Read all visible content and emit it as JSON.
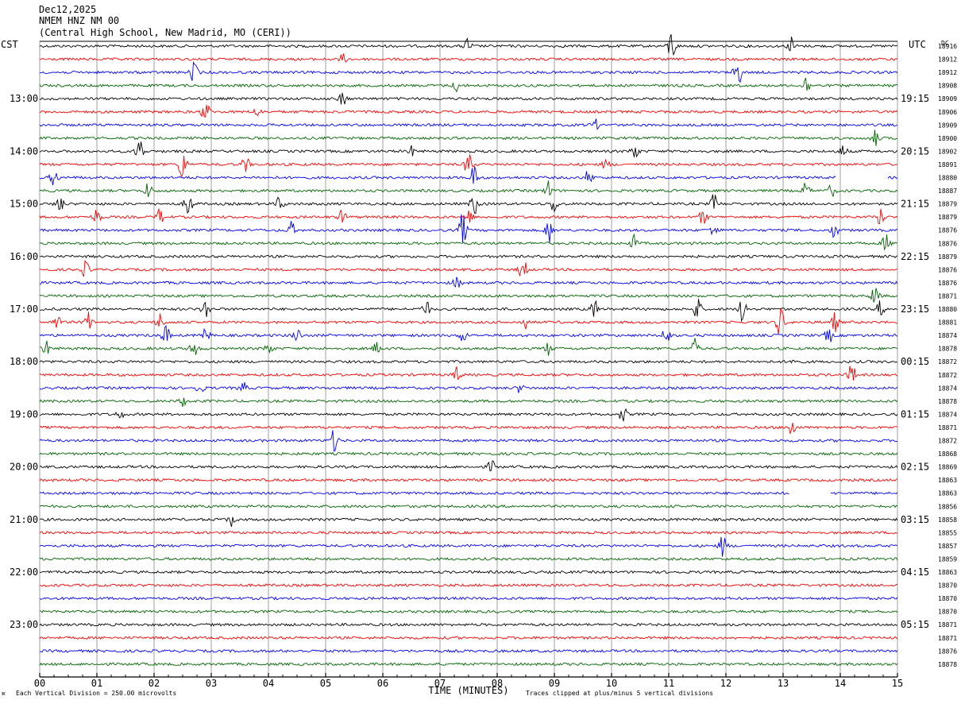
{
  "header": {
    "date": "Dec12,2025",
    "station": "NMEM HNZ NM 00",
    "location": "(Central High School, New Madrid, MO (CERI))"
  },
  "left_zone_label": "CST",
  "right_zone_label": "UTC",
  "dc_header": "DC",
  "footer": {
    "scale": "Each Vertical Division =  250.00 microvolts",
    "clip": "Traces clipped at plus/minus 5 vertical divisions",
    "corner_mark": "⌘"
  },
  "chart_data": {
    "type": "line",
    "title": "",
    "xlabel": "TIME (MINUTES)",
    "ylabel": "",
    "xlim": [
      0,
      15
    ],
    "x_ticks": [
      "00",
      "01",
      "02",
      "03",
      "04",
      "05",
      "06",
      "07",
      "08",
      "09",
      "10",
      "11",
      "12",
      "13",
      "14",
      "15"
    ],
    "trace_colors": [
      "#000000",
      "#ff0000",
      "#0000ff",
      "#006400"
    ],
    "row_count": 48,
    "left_time_labels": [
      {
        "row": 4,
        "text": "13:00"
      },
      {
        "row": 8,
        "text": "14:00"
      },
      {
        "row": 12,
        "text": "15:00"
      },
      {
        "row": 16,
        "text": "16:00"
      },
      {
        "row": 20,
        "text": "17:00"
      },
      {
        "row": 24,
        "text": "18:00"
      },
      {
        "row": 28,
        "text": "19:00"
      },
      {
        "row": 32,
        "text": "20:00"
      },
      {
        "row": 36,
        "text": "21:00"
      },
      {
        "row": 40,
        "text": "22:00"
      },
      {
        "row": 44,
        "text": "23:00"
      }
    ],
    "right_time_labels": [
      {
        "row": 4,
        "text": "19:15"
      },
      {
        "row": 8,
        "text": "20:15"
      },
      {
        "row": 12,
        "text": "21:15"
      },
      {
        "row": 16,
        "text": "22:15"
      },
      {
        "row": 20,
        "text": "23:15"
      },
      {
        "row": 24,
        "text": "00:15"
      },
      {
        "row": 28,
        "text": "01:15"
      },
      {
        "row": 32,
        "text": "02:15"
      },
      {
        "row": 36,
        "text": "03:15"
      },
      {
        "row": 40,
        "text": "04:15"
      },
      {
        "row": 44,
        "text": "05:15"
      }
    ],
    "dc_offsets": [
      "18916",
      "18912",
      "18912",
      "18908",
      "18909",
      "18906",
      "18909",
      "18900",
      "18902",
      "18891",
      "18880",
      "18887",
      "18879",
      "18879",
      "18876",
      "18876",
      "18879",
      "18876",
      "18876",
      "18871",
      "18880",
      "18881",
      "18874",
      "18878",
      "18872",
      "18872",
      "18874",
      "18878",
      "18874",
      "18871",
      "18872",
      "18868",
      "18869",
      "18863",
      "18863",
      "18856",
      "18858",
      "18855",
      "18857",
      "18859",
      "18863",
      "18870",
      "18870",
      "18870",
      "18871",
      "18871",
      "18876",
      "18878"
    ],
    "gaps": [
      {
        "row": 10,
        "x_start": 13.92,
        "x_end": 14.82
      },
      {
        "row": 34,
        "x_start": 13.12,
        "x_end": 13.82
      }
    ],
    "events": [
      {
        "row": 0,
        "x": 7.48,
        "amp": 10
      },
      {
        "row": 0,
        "x": 11.05,
        "amp": 22
      },
      {
        "row": 0,
        "x": 13.15,
        "amp": 12
      },
      {
        "row": 1,
        "x": 5.3,
        "amp": 6
      },
      {
        "row": 2,
        "x": 2.7,
        "amp": 14
      },
      {
        "row": 2,
        "x": 12.2,
        "amp": 22
      },
      {
        "row": 3,
        "x": 7.3,
        "amp": 8
      },
      {
        "row": 3,
        "x": 13.4,
        "amp": 12
      },
      {
        "row": 4,
        "x": 5.3,
        "amp": 10
      },
      {
        "row": 5,
        "x": 2.9,
        "amp": 16
      },
      {
        "row": 5,
        "x": 3.8,
        "amp": 6
      },
      {
        "row": 6,
        "x": 9.7,
        "amp": 8
      },
      {
        "row": 7,
        "x": 14.6,
        "amp": 12
      },
      {
        "row": 8,
        "x": 1.75,
        "amp": 20
      },
      {
        "row": 8,
        "x": 6.5,
        "amp": 6
      },
      {
        "row": 8,
        "x": 10.4,
        "amp": 12
      },
      {
        "row": 8,
        "x": 14.05,
        "amp": 8
      },
      {
        "row": 9,
        "x": 2.5,
        "amp": 22
      },
      {
        "row": 9,
        "x": 3.6,
        "amp": 10
      },
      {
        "row": 9,
        "x": 7.5,
        "amp": 18
      },
      {
        "row": 9,
        "x": 9.9,
        "amp": 6
      },
      {
        "row": 10,
        "x": 0.25,
        "amp": 12
      },
      {
        "row": 10,
        "x": 7.6,
        "amp": 16
      },
      {
        "row": 10,
        "x": 9.6,
        "amp": 10
      },
      {
        "row": 11,
        "x": 1.9,
        "amp": 10
      },
      {
        "row": 11,
        "x": 8.9,
        "amp": 12
      },
      {
        "row": 11,
        "x": 13.4,
        "amp": 10
      },
      {
        "row": 11,
        "x": 13.85,
        "amp": 8
      },
      {
        "row": 12,
        "x": 0.35,
        "amp": 12
      },
      {
        "row": 12,
        "x": 2.6,
        "amp": 18
      },
      {
        "row": 12,
        "x": 4.2,
        "amp": 10
      },
      {
        "row": 12,
        "x": 7.6,
        "amp": 16
      },
      {
        "row": 12,
        "x": 9.0,
        "amp": 12
      },
      {
        "row": 12,
        "x": 11.8,
        "amp": 14
      },
      {
        "row": 13,
        "x": 1.0,
        "amp": 10
      },
      {
        "row": 13,
        "x": 2.1,
        "amp": 10
      },
      {
        "row": 13,
        "x": 5.3,
        "amp": 10
      },
      {
        "row": 13,
        "x": 7.5,
        "amp": 10
      },
      {
        "row": 13,
        "x": 11.6,
        "amp": 10
      },
      {
        "row": 13,
        "x": 14.7,
        "amp": 12
      },
      {
        "row": 14,
        "x": 4.4,
        "amp": 10
      },
      {
        "row": 14,
        "x": 7.4,
        "amp": 22
      },
      {
        "row": 14,
        "x": 8.9,
        "amp": 16
      },
      {
        "row": 14,
        "x": 11.8,
        "amp": 10
      },
      {
        "row": 14,
        "x": 13.9,
        "amp": 10
      },
      {
        "row": 15,
        "x": 10.4,
        "amp": 10
      },
      {
        "row": 15,
        "x": 14.8,
        "amp": 12
      },
      {
        "row": 17,
        "x": 0.8,
        "amp": 10
      },
      {
        "row": 17,
        "x": 8.45,
        "amp": 16
      },
      {
        "row": 18,
        "x": 7.3,
        "amp": 8
      },
      {
        "row": 19,
        "x": 14.6,
        "amp": 14
      },
      {
        "row": 20,
        "x": 2.9,
        "amp": 14
      },
      {
        "row": 20,
        "x": 6.75,
        "amp": 12
      },
      {
        "row": 20,
        "x": 9.7,
        "amp": 12
      },
      {
        "row": 20,
        "x": 11.5,
        "amp": 16
      },
      {
        "row": 20,
        "x": 12.3,
        "amp": 18
      },
      {
        "row": 20,
        "x": 14.7,
        "amp": 10
      },
      {
        "row": 21,
        "x": 0.3,
        "amp": 10
      },
      {
        "row": 21,
        "x": 0.85,
        "amp": 12
      },
      {
        "row": 21,
        "x": 2.1,
        "amp": 12
      },
      {
        "row": 21,
        "x": 8.5,
        "amp": 8
      },
      {
        "row": 21,
        "x": 12.95,
        "amp": 22
      },
      {
        "row": 21,
        "x": 13.9,
        "amp": 12
      },
      {
        "row": 22,
        "x": 2.2,
        "amp": 14
      },
      {
        "row": 22,
        "x": 2.9,
        "amp": 10
      },
      {
        "row": 22,
        "x": 4.5,
        "amp": 10
      },
      {
        "row": 22,
        "x": 7.4,
        "amp": 8
      },
      {
        "row": 22,
        "x": 10.95,
        "amp": 14
      },
      {
        "row": 22,
        "x": 13.8,
        "amp": 10
      },
      {
        "row": 23,
        "x": 0.1,
        "amp": 10
      },
      {
        "row": 23,
        "x": 2.7,
        "amp": 14
      },
      {
        "row": 23,
        "x": 4.0,
        "amp": 8
      },
      {
        "row": 23,
        "x": 5.9,
        "amp": 8
      },
      {
        "row": 23,
        "x": 8.9,
        "amp": 8
      },
      {
        "row": 23,
        "x": 11.45,
        "amp": 12
      },
      {
        "row": 24,
        "x": 13.2,
        "amp": 6
      },
      {
        "row": 25,
        "x": 7.3,
        "amp": 10
      },
      {
        "row": 25,
        "x": 14.2,
        "amp": 14
      },
      {
        "row": 26,
        "x": 2.8,
        "amp": 8
      },
      {
        "row": 26,
        "x": 3.55,
        "amp": 8
      },
      {
        "row": 26,
        "x": 8.4,
        "amp": 6
      },
      {
        "row": 27,
        "x": 2.5,
        "amp": 6
      },
      {
        "row": 28,
        "x": 1.4,
        "amp": 6
      },
      {
        "row": 28,
        "x": 10.2,
        "amp": 10
      },
      {
        "row": 29,
        "x": 13.15,
        "amp": 12
      },
      {
        "row": 30,
        "x": 5.15,
        "amp": 14
      },
      {
        "row": 32,
        "x": 7.9,
        "amp": 8
      },
      {
        "row": 36,
        "x": 3.35,
        "amp": 8
      },
      {
        "row": 38,
        "x": 11.95,
        "amp": 14
      }
    ]
  }
}
